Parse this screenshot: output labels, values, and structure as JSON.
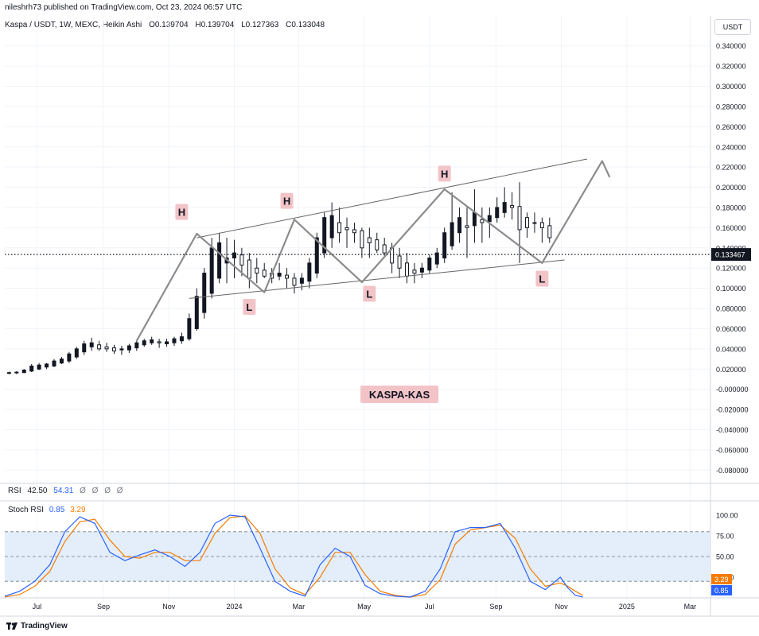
{
  "header": {
    "publish_info": "nileshrh73 published on TradingView.com, Oct 23, 2024 06:57 UTC",
    "symbol": "Kaspa / USDT, 1W, MEXC, Heikin Ashi",
    "ohlc": {
      "o": "O0.139704",
      "h": "H0.139704",
      "l": "L0.127363",
      "c": "C0.133048"
    },
    "currency": "USDT"
  },
  "footer": {
    "brand": "TradingView"
  },
  "rsi": {
    "label": "RSI",
    "v1": "42.50",
    "v2": "54.31",
    "placeholders": [
      "Ø",
      "Ø",
      "Ø",
      "Ø"
    ]
  },
  "stoch": {
    "label": "Stoch RSI",
    "k": "0.85",
    "d": "3.29"
  },
  "colors": {
    "k_line": "#2962ff",
    "d_line": "#f57c00",
    "band_fill": "#e3eefa",
    "candle": "#131722",
    "annotation_bg": "#f2c4c8",
    "pattern_lines": "#8c8c8c"
  },
  "annotations": {
    "chart_label": "KASPA-KAS",
    "points": [
      {
        "text": "H",
        "date": "2023-11-13",
        "price": 0.174
      },
      {
        "text": "L",
        "date": "2024-01-15",
        "price": 0.08
      },
      {
        "text": "H",
        "date": "2024-02-19",
        "price": 0.185
      },
      {
        "text": "L",
        "date": "2024-05-06",
        "price": 0.093
      },
      {
        "text": "H",
        "date": "2024-07-15",
        "price": 0.212
      },
      {
        "text": "L",
        "date": "2024-10-14",
        "price": 0.108
      }
    ]
  },
  "chart_data": {
    "type": "candlestick",
    "title": "Kaspa / USDT, 1W, MEXC, Heikin Ashi",
    "x_axis": {
      "type": "date",
      "range": [
        "2023-06-01",
        "2025-03-20"
      ],
      "ticks": [
        {
          "date": "2023-07-01",
          "label": "Jul"
        },
        {
          "date": "2023-09-01",
          "label": "Sep"
        },
        {
          "date": "2023-11-01",
          "label": "Nov"
        },
        {
          "date": "2024-01-01",
          "label": "2024"
        },
        {
          "date": "2024-03-01",
          "label": "Mar"
        },
        {
          "date": "2024-05-01",
          "label": "May"
        },
        {
          "date": "2024-07-01",
          "label": "Jul"
        },
        {
          "date": "2024-09-01",
          "label": "Sep"
        },
        {
          "date": "2024-11-01",
          "label": "Nov"
        },
        {
          "date": "2025-01-01",
          "label": "2025"
        },
        {
          "date": "2025-03-01",
          "label": "Mar"
        }
      ]
    },
    "y_axis": {
      "range": [
        -0.09,
        0.35
      ],
      "ticks": [
        "0.340000",
        "0.320000",
        "0.300000",
        "0.280000",
        "0.260000",
        "0.240000",
        "0.220000",
        "0.200000",
        "0.180000",
        "0.160000",
        "0.140000",
        "0.120000",
        "0.100000",
        "0.080000",
        "0.060000",
        "0.040000",
        "0.020000",
        "-0.000000",
        "-0.020000",
        "-0.040000",
        "-0.060000",
        "-0.080000"
      ]
    },
    "last_price": {
      "value": 0.133467,
      "label": "0.133467"
    },
    "candles": [
      {
        "date": "2023-06-05",
        "o": 0.016,
        "h": 0.0175,
        "l": 0.015,
        "c": 0.0165
      },
      {
        "date": "2023-06-12",
        "o": 0.0162,
        "h": 0.018,
        "l": 0.015,
        "c": 0.017
      },
      {
        "date": "2023-06-19",
        "o": 0.0165,
        "h": 0.02,
        "l": 0.016,
        "c": 0.019
      },
      {
        "date": "2023-06-26",
        "o": 0.018,
        "h": 0.025,
        "l": 0.017,
        "c": 0.023
      },
      {
        "date": "2023-07-03",
        "o": 0.02,
        "h": 0.026,
        "l": 0.019,
        "c": 0.024
      },
      {
        "date": "2023-07-10",
        "o": 0.022,
        "h": 0.026,
        "l": 0.02,
        "c": 0.025
      },
      {
        "date": "2023-07-17",
        "o": 0.023,
        "h": 0.03,
        "l": 0.022,
        "c": 0.028
      },
      {
        "date": "2023-07-24",
        "o": 0.026,
        "h": 0.032,
        "l": 0.025,
        "c": 0.03
      },
      {
        "date": "2023-07-31",
        "o": 0.028,
        "h": 0.037,
        "l": 0.026,
        "c": 0.035
      },
      {
        "date": "2023-08-07",
        "o": 0.032,
        "h": 0.042,
        "l": 0.03,
        "c": 0.04
      },
      {
        "date": "2023-08-14",
        "o": 0.037,
        "h": 0.048,
        "l": 0.034,
        "c": 0.045
      },
      {
        "date": "2023-08-21",
        "o": 0.042,
        "h": 0.051,
        "l": 0.038,
        "c": 0.046
      },
      {
        "date": "2023-08-28",
        "o": 0.044,
        "h": 0.048,
        "l": 0.038,
        "c": 0.04
      },
      {
        "date": "2023-09-04",
        "o": 0.042,
        "h": 0.046,
        "l": 0.037,
        "c": 0.04
      },
      {
        "date": "2023-09-11",
        "o": 0.041,
        "h": 0.044,
        "l": 0.035,
        "c": 0.038
      },
      {
        "date": "2023-09-18",
        "o": 0.039,
        "h": 0.043,
        "l": 0.034,
        "c": 0.04
      },
      {
        "date": "2023-09-25",
        "o": 0.039,
        "h": 0.045,
        "l": 0.036,
        "c": 0.043
      },
      {
        "date": "2023-10-02",
        "o": 0.041,
        "h": 0.048,
        "l": 0.038,
        "c": 0.046
      },
      {
        "date": "2023-10-09",
        "o": 0.044,
        "h": 0.05,
        "l": 0.042,
        "c": 0.048
      },
      {
        "date": "2023-10-16",
        "o": 0.046,
        "h": 0.052,
        "l": 0.044,
        "c": 0.049
      },
      {
        "date": "2023-10-23",
        "o": 0.047,
        "h": 0.05,
        "l": 0.041,
        "c": 0.046
      },
      {
        "date": "2023-10-30",
        "o": 0.045,
        "h": 0.05,
        "l": 0.042,
        "c": 0.047
      },
      {
        "date": "2023-11-06",
        "o": 0.046,
        "h": 0.052,
        "l": 0.043,
        "c": 0.05
      },
      {
        "date": "2023-11-13",
        "o": 0.048,
        "h": 0.056,
        "l": 0.045,
        "c": 0.052
      },
      {
        "date": "2023-11-20",
        "o": 0.05,
        "h": 0.075,
        "l": 0.048,
        "c": 0.07
      },
      {
        "date": "2023-11-27",
        "o": 0.06,
        "h": 0.1,
        "l": 0.058,
        "c": 0.092
      },
      {
        "date": "2023-12-04",
        "o": 0.076,
        "h": 0.12,
        "l": 0.07,
        "c": 0.115
      },
      {
        "date": "2023-12-11",
        "o": 0.095,
        "h": 0.15,
        "l": 0.09,
        "c": 0.14
      },
      {
        "date": "2023-12-18",
        "o": 0.11,
        "h": 0.155,
        "l": 0.105,
        "c": 0.145
      },
      {
        "date": "2023-12-25",
        "o": 0.125,
        "h": 0.15,
        "l": 0.105,
        "c": 0.13
      },
      {
        "date": "2024-01-01",
        "o": 0.13,
        "h": 0.148,
        "l": 0.11,
        "c": 0.135
      },
      {
        "date": "2024-01-08",
        "o": 0.133,
        "h": 0.14,
        "l": 0.112,
        "c": 0.123
      },
      {
        "date": "2024-01-15",
        "o": 0.128,
        "h": 0.135,
        "l": 0.1,
        "c": 0.11
      },
      {
        "date": "2024-01-22",
        "o": 0.12,
        "h": 0.13,
        "l": 0.105,
        "c": 0.115
      },
      {
        "date": "2024-01-29",
        "o": 0.118,
        "h": 0.125,
        "l": 0.11,
        "c": 0.112
      },
      {
        "date": "2024-02-05",
        "o": 0.115,
        "h": 0.12,
        "l": 0.105,
        "c": 0.11
      },
      {
        "date": "2024-02-12",
        "o": 0.112,
        "h": 0.125,
        "l": 0.108,
        "c": 0.115
      },
      {
        "date": "2024-02-19",
        "o": 0.113,
        "h": 0.12,
        "l": 0.1,
        "c": 0.11
      },
      {
        "date": "2024-02-26",
        "o": 0.11,
        "h": 0.115,
        "l": 0.095,
        "c": 0.103
      },
      {
        "date": "2024-03-04",
        "o": 0.105,
        "h": 0.115,
        "l": 0.098,
        "c": 0.11
      },
      {
        "date": "2024-03-11",
        "o": 0.107,
        "h": 0.13,
        "l": 0.1,
        "c": 0.125
      },
      {
        "date": "2024-03-18",
        "o": 0.115,
        "h": 0.155,
        "l": 0.11,
        "c": 0.15
      },
      {
        "date": "2024-03-25",
        "o": 0.135,
        "h": 0.175,
        "l": 0.13,
        "c": 0.17
      },
      {
        "date": "2024-04-01",
        "o": 0.15,
        "h": 0.185,
        "l": 0.14,
        "c": 0.172
      },
      {
        "date": "2024-04-08",
        "o": 0.165,
        "h": 0.18,
        "l": 0.145,
        "c": 0.155
      },
      {
        "date": "2024-04-15",
        "o": 0.16,
        "h": 0.17,
        "l": 0.14,
        "c": 0.158
      },
      {
        "date": "2024-04-22",
        "o": 0.158,
        "h": 0.165,
        "l": 0.145,
        "c": 0.155
      },
      {
        "date": "2024-04-29",
        "o": 0.157,
        "h": 0.16,
        "l": 0.13,
        "c": 0.14
      },
      {
        "date": "2024-05-06",
        "o": 0.15,
        "h": 0.16,
        "l": 0.13,
        "c": 0.145
      },
      {
        "date": "2024-05-13",
        "o": 0.148,
        "h": 0.155,
        "l": 0.135,
        "c": 0.138
      },
      {
        "date": "2024-05-20",
        "o": 0.143,
        "h": 0.15,
        "l": 0.13,
        "c": 0.135
      },
      {
        "date": "2024-05-27",
        "o": 0.14,
        "h": 0.145,
        "l": 0.115,
        "c": 0.125
      },
      {
        "date": "2024-06-03",
        "o": 0.132,
        "h": 0.14,
        "l": 0.11,
        "c": 0.12
      },
      {
        "date": "2024-06-10",
        "o": 0.125,
        "h": 0.135,
        "l": 0.105,
        "c": 0.112
      },
      {
        "date": "2024-06-17",
        "o": 0.118,
        "h": 0.125,
        "l": 0.105,
        "c": 0.115
      },
      {
        "date": "2024-06-24",
        "o": 0.116,
        "h": 0.125,
        "l": 0.11,
        "c": 0.12
      },
      {
        "date": "2024-07-01",
        "o": 0.118,
        "h": 0.133,
        "l": 0.115,
        "c": 0.13
      },
      {
        "date": "2024-07-08",
        "o": 0.124,
        "h": 0.14,
        "l": 0.12,
        "c": 0.135
      },
      {
        "date": "2024-07-15",
        "o": 0.13,
        "h": 0.16,
        "l": 0.125,
        "c": 0.155
      },
      {
        "date": "2024-07-22",
        "o": 0.142,
        "h": 0.195,
        "l": 0.138,
        "c": 0.165
      },
      {
        "date": "2024-07-29",
        "o": 0.155,
        "h": 0.18,
        "l": 0.145,
        "c": 0.17
      },
      {
        "date": "2024-08-05",
        "o": 0.162,
        "h": 0.18,
        "l": 0.13,
        "c": 0.16
      },
      {
        "date": "2024-08-12",
        "o": 0.162,
        "h": 0.198,
        "l": 0.145,
        "c": 0.175
      },
      {
        "date": "2024-08-19",
        "o": 0.168,
        "h": 0.18,
        "l": 0.145,
        "c": 0.165
      },
      {
        "date": "2024-08-26",
        "o": 0.166,
        "h": 0.18,
        "l": 0.15,
        "c": 0.172
      },
      {
        "date": "2024-09-02",
        "o": 0.17,
        "h": 0.19,
        "l": 0.165,
        "c": 0.18
      },
      {
        "date": "2024-09-09",
        "o": 0.175,
        "h": 0.2,
        "l": 0.17,
        "c": 0.185
      },
      {
        "date": "2024-09-16",
        "o": 0.182,
        "h": 0.195,
        "l": 0.168,
        "c": 0.18
      },
      {
        "date": "2024-09-23",
        "o": 0.181,
        "h": 0.205,
        "l": 0.125,
        "c": 0.158
      },
      {
        "date": "2024-09-30",
        "o": 0.17,
        "h": 0.175,
        "l": 0.15,
        "c": 0.16
      },
      {
        "date": "2024-10-07",
        "o": 0.165,
        "h": 0.175,
        "l": 0.155,
        "c": 0.165
      },
      {
        "date": "2024-10-14",
        "o": 0.165,
        "h": 0.17,
        "l": 0.145,
        "c": 0.16
      },
      {
        "date": "2024-10-21",
        "o": 0.162,
        "h": 0.17,
        "l": 0.145,
        "c": 0.15
      }
    ],
    "patterns": {
      "upper_channel": [
        {
          "date": "2023-11-27",
          "price": 0.15
        },
        {
          "date": "2024-11-25",
          "price": 0.228
        }
      ],
      "lower_channel": [
        {
          "date": "2023-11-20",
          "price": 0.09
        },
        {
          "date": "2024-11-04",
          "price": 0.128
        }
      ],
      "zigzag": [
        {
          "date": "2023-10-02",
          "price": 0.048
        },
        {
          "date": "2023-11-27",
          "price": 0.154
        },
        {
          "date": "2024-01-29",
          "price": 0.096
        },
        {
          "date": "2024-02-26",
          "price": 0.168
        },
        {
          "date": "2024-04-29",
          "price": 0.106
        },
        {
          "date": "2024-07-15",
          "price": 0.198
        },
        {
          "date": "2024-10-14",
          "price": 0.125
        },
        {
          "date": "2024-12-09",
          "price": 0.226
        },
        {
          "date": "2024-12-16",
          "price": 0.21
        }
      ]
    },
    "stoch_rsi": {
      "y_ticks": [
        "100.00",
        "75.00",
        "50.00",
        "25.00"
      ],
      "band": [
        20,
        80
      ],
      "mid": 50,
      "k_value": 0.85,
      "d_value": 3.29,
      "k_series": [
        [
          "2023-06-01",
          2
        ],
        [
          "2023-06-15",
          8
        ],
        [
          "2023-06-29",
          20
        ],
        [
          "2023-07-13",
          40
        ],
        [
          "2023-07-27",
          80
        ],
        [
          "2023-08-10",
          98
        ],
        [
          "2023-08-24",
          90
        ],
        [
          "2023-09-07",
          55
        ],
        [
          "2023-09-21",
          45
        ],
        [
          "2023-10-05",
          52
        ],
        [
          "2023-10-19",
          58
        ],
        [
          "2023-11-02",
          50
        ],
        [
          "2023-11-16",
          38
        ],
        [
          "2023-11-30",
          55
        ],
        [
          "2023-12-14",
          90
        ],
        [
          "2023-12-28",
          100
        ],
        [
          "2024-01-11",
          98
        ],
        [
          "2024-01-25",
          60
        ],
        [
          "2024-02-08",
          20
        ],
        [
          "2024-02-22",
          8
        ],
        [
          "2024-03-07",
          2
        ],
        [
          "2024-03-21",
          40
        ],
        [
          "2024-04-04",
          60
        ],
        [
          "2024-04-18",
          50
        ],
        [
          "2024-05-02",
          15
        ],
        [
          "2024-05-16",
          5
        ],
        [
          "2024-05-30",
          2
        ],
        [
          "2024-06-13",
          1
        ],
        [
          "2024-06-27",
          8
        ],
        [
          "2024-07-11",
          35
        ],
        [
          "2024-07-25",
          80
        ],
        [
          "2024-08-08",
          85
        ],
        [
          "2024-08-22",
          85
        ],
        [
          "2024-09-05",
          90
        ],
        [
          "2024-09-19",
          60
        ],
        [
          "2024-10-03",
          20
        ],
        [
          "2024-10-17",
          10
        ],
        [
          "2024-10-31",
          25
        ],
        [
          "2024-11-07",
          12
        ],
        [
          "2024-11-14",
          3
        ],
        [
          "2024-11-21",
          1
        ]
      ],
      "d_series": [
        [
          "2023-06-01",
          1
        ],
        [
          "2023-06-15",
          4
        ],
        [
          "2023-06-29",
          14
        ],
        [
          "2023-07-13",
          32
        ],
        [
          "2023-07-27",
          68
        ],
        [
          "2023-08-10",
          92
        ],
        [
          "2023-08-24",
          95
        ],
        [
          "2023-09-07",
          70
        ],
        [
          "2023-09-21",
          50
        ],
        [
          "2023-10-05",
          48
        ],
        [
          "2023-10-19",
          55
        ],
        [
          "2023-11-02",
          55
        ],
        [
          "2023-11-16",
          45
        ],
        [
          "2023-11-30",
          45
        ],
        [
          "2023-12-14",
          78
        ],
        [
          "2023-12-28",
          97
        ],
        [
          "2024-01-11",
          99
        ],
        [
          "2024-01-25",
          78
        ],
        [
          "2024-02-08",
          35
        ],
        [
          "2024-02-22",
          12
        ],
        [
          "2024-03-07",
          4
        ],
        [
          "2024-03-21",
          25
        ],
        [
          "2024-04-04",
          55
        ],
        [
          "2024-04-18",
          55
        ],
        [
          "2024-05-02",
          28
        ],
        [
          "2024-05-16",
          8
        ],
        [
          "2024-05-30",
          3
        ],
        [
          "2024-06-13",
          1
        ],
        [
          "2024-06-27",
          4
        ],
        [
          "2024-07-11",
          22
        ],
        [
          "2024-07-25",
          65
        ],
        [
          "2024-08-08",
          82
        ],
        [
          "2024-08-22",
          85
        ],
        [
          "2024-09-05",
          88
        ],
        [
          "2024-09-19",
          72
        ],
        [
          "2024-10-03",
          35
        ],
        [
          "2024-10-17",
          14
        ],
        [
          "2024-10-31",
          18
        ],
        [
          "2024-11-07",
          14
        ],
        [
          "2024-11-14",
          8
        ],
        [
          "2024-11-21",
          3
        ]
      ]
    }
  }
}
